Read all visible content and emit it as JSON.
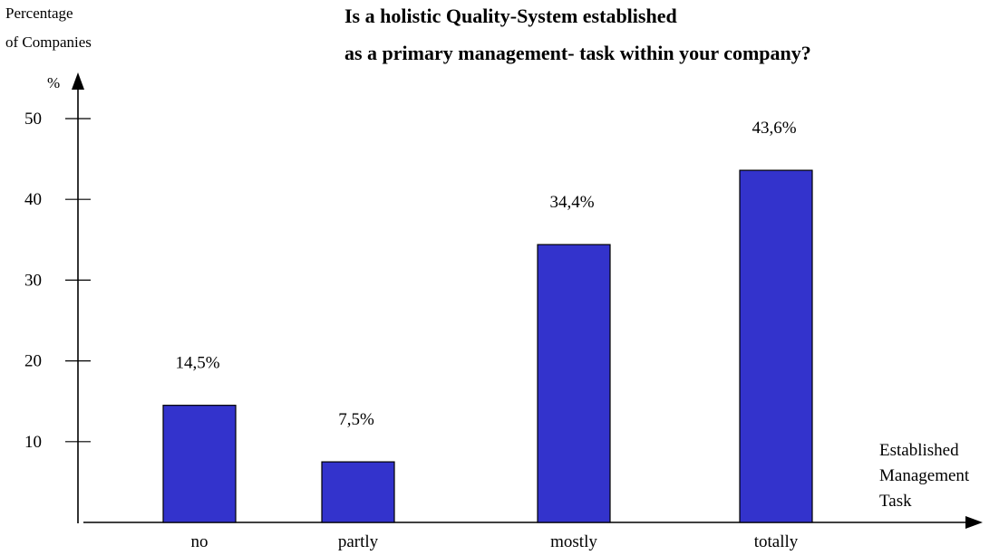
{
  "chart_data": {
    "type": "bar",
    "title": [
      "Is a holistic Quality-System established",
      "as a primary management- task within your company?"
    ],
    "ylabel": [
      "Percentage",
      "of Companies"
    ],
    "y_unit": "%",
    "xlabel": [
      "Established",
      "Management",
      "Task"
    ],
    "categories": [
      "no",
      "partly",
      "mostly",
      "totally"
    ],
    "values": [
      14.5,
      7.5,
      34.4,
      43.6
    ],
    "data_labels": [
      "14,5%",
      "7,5%",
      "34,4%",
      "43,6%"
    ],
    "yticks": [
      10,
      20,
      30,
      40,
      50
    ],
    "ylim": [
      0,
      50
    ],
    "grid": false,
    "bar_color": "#3333cc"
  }
}
